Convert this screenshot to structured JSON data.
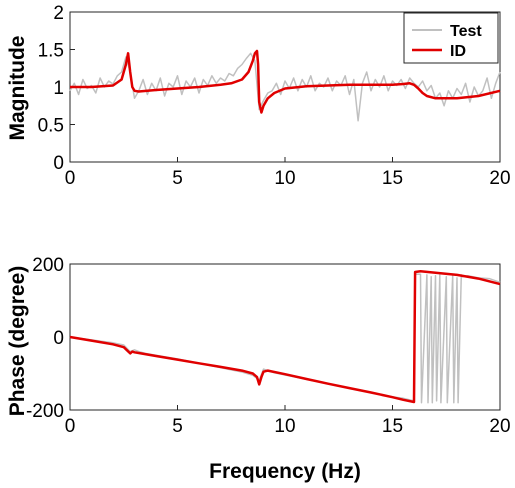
{
  "chart_data": [
    {
      "type": "line",
      "ylabel": "Magnitude",
      "xlabel": "",
      "xlim": [
        0,
        20
      ],
      "ylim": [
        0,
        2
      ],
      "xticks": [
        "0",
        "5",
        "10",
        "15",
        "20"
      ],
      "yticks": [
        "0",
        "0.5",
        "1",
        "1.5",
        "2"
      ],
      "legend": {
        "position": "top-right",
        "entries": [
          "Test",
          "ID"
        ]
      },
      "series": [
        {
          "name": "Test",
          "color": "#c0c0c0",
          "x": [
            0,
            0.2,
            0.4,
            0.6,
            0.8,
            1,
            1.2,
            1.4,
            1.6,
            1.8,
            2,
            2.2,
            2.4,
            2.6,
            2.8,
            3,
            3.2,
            3.4,
            3.6,
            3.8,
            4,
            4.2,
            4.4,
            4.6,
            4.8,
            5,
            5.2,
            5.4,
            5.6,
            5.8,
            6,
            6.2,
            6.4,
            6.6,
            6.8,
            7,
            7.2,
            7.4,
            7.6,
            7.8,
            8,
            8.2,
            8.4,
            8.6,
            8.8,
            9,
            9.2,
            9.4,
            9.6,
            9.8,
            10,
            10.2,
            10.4,
            10.6,
            10.8,
            11,
            11.2,
            11.4,
            11.6,
            11.8,
            12,
            12.2,
            12.4,
            12.6,
            12.8,
            13,
            13.2,
            13.4,
            13.6,
            13.8,
            14,
            14.2,
            14.4,
            14.6,
            14.8,
            15,
            15.2,
            15.4,
            15.6,
            15.8,
            16,
            16.2,
            16.4,
            16.6,
            16.8,
            17,
            17.2,
            17.4,
            17.6,
            17.8,
            18,
            18.2,
            18.4,
            18.6,
            18.8,
            19,
            19.2,
            19.4,
            19.6,
            19.8,
            20
          ],
          "y": [
            0.95,
            1.05,
            0.9,
            1.1,
            0.98,
            1.02,
            0.92,
            1.12,
            1.0,
            1.08,
            1.04,
            1.15,
            1.2,
            1.4,
            1.2,
            0.85,
            0.95,
            1.1,
            0.9,
            1.05,
            0.95,
            1.12,
            0.88,
            1.05,
            1.0,
            1.15,
            0.9,
            1.08,
            1.0,
            1.12,
            0.92,
            1.1,
            1.02,
            1.15,
            1.05,
            1.12,
            1.08,
            1.18,
            1.15,
            1.25,
            1.3,
            1.38,
            1.45,
            1.35,
            0.7,
            0.82,
            0.92,
            0.95,
            1.05,
            0.9,
            1.08,
            0.98,
            1.12,
            0.95,
            1.1,
            1.0,
            1.15,
            0.95,
            1.05,
            1.0,
            1.12,
            0.95,
            1.08,
            1.02,
            1.15,
            0.9,
            1.1,
            0.55,
            1.05,
            1.2,
            0.95,
            1.1,
            1.0,
            1.15,
            0.95,
            1.08,
            1.02,
            1.1,
            0.98,
            1.12,
            1.05,
            1.0,
            1.08,
            0.95,
            1.02,
            0.85,
            0.92,
            0.75,
            0.95,
            0.85,
            0.98,
            0.9,
            1.05,
            0.8,
            1.0,
            0.88,
            0.95,
            1.12,
            0.85,
            1.05,
            1.2
          ]
        },
        {
          "name": "ID",
          "color": "#e00000",
          "x": [
            0,
            1,
            2,
            2.4,
            2.6,
            2.7,
            2.8,
            2.9,
            3,
            3.2,
            4,
            5,
            6,
            7,
            7.5,
            8,
            8.3,
            8.5,
            8.6,
            8.7,
            8.75,
            8.8,
            8.9,
            9,
            9.2,
            9.5,
            10,
            11,
            12,
            13,
            14,
            15,
            15.5,
            15.8,
            16,
            16.2,
            16.4,
            16.6,
            17,
            18,
            19,
            20
          ],
          "y": [
            1.0,
            1.0,
            1.02,
            1.1,
            1.3,
            1.45,
            1.2,
            1.0,
            0.95,
            0.94,
            0.96,
            0.98,
            1.0,
            1.03,
            1.05,
            1.1,
            1.2,
            1.35,
            1.45,
            1.48,
            1.3,
            0.8,
            0.66,
            0.75,
            0.85,
            0.92,
            0.98,
            1.01,
            1.02,
            1.03,
            1.03,
            1.03,
            1.04,
            1.05,
            1.03,
            0.98,
            0.92,
            0.88,
            0.85,
            0.85,
            0.88,
            0.95
          ]
        }
      ]
    },
    {
      "type": "line",
      "ylabel": "Phase (degree)",
      "xlabel": "Frequency (Hz)",
      "xlim": [
        0,
        20
      ],
      "ylim": [
        -200,
        200
      ],
      "xticks": [
        "0",
        "5",
        "10",
        "15",
        "20"
      ],
      "yticks": [
        "-200",
        "0",
        "200"
      ],
      "series": [
        {
          "name": "Test",
          "color": "#c0c0c0",
          "x": [
            0,
            0.5,
            1,
            1.5,
            2,
            2.5,
            2.8,
            3,
            3.2,
            3.5,
            4,
            4.5,
            5,
            5.5,
            6,
            6.5,
            7,
            7.5,
            8,
            8.5,
            8.8,
            9,
            9.2,
            9.5,
            10,
            10.5,
            11,
            11.5,
            12,
            12.5,
            13,
            13.5,
            14,
            14.5,
            15,
            15.5,
            16,
            16.05,
            16.3,
            16.35,
            16.6,
            16.65,
            16.8,
            16.85,
            17,
            17.05,
            17.2,
            17.25,
            17.5,
            17.55,
            17.8,
            17.85,
            18,
            18.05,
            18.2,
            18.25,
            18.5,
            19,
            19.5,
            20
          ],
          "y": [
            0,
            -4,
            -8,
            -12,
            -16,
            -22,
            -40,
            -35,
            -40,
            -45,
            -50,
            -55,
            -60,
            -66,
            -72,
            -78,
            -84,
            -90,
            -96,
            -105,
            -118,
            -88,
            -92,
            -98,
            -104,
            -110,
            -116,
            -122,
            -128,
            -134,
            -140,
            -146,
            -152,
            -158,
            -164,
            -168,
            -175,
            172,
            172,
            -180,
            170,
            -180,
            165,
            -180,
            168,
            -175,
            170,
            -180,
            165,
            -180,
            168,
            -180,
            162,
            -180,
            170,
            165,
            168,
            162,
            160,
            150
          ]
        },
        {
          "name": "ID",
          "color": "#e00000",
          "x": [
            0,
            1,
            2,
            2.5,
            2.8,
            2.9,
            3,
            3.3,
            4,
            5,
            6,
            7,
            8,
            8.5,
            8.7,
            8.8,
            8.9,
            9,
            9.2,
            10,
            11,
            12,
            13,
            14,
            15,
            15.5,
            16,
            16.05,
            16.3,
            17,
            18,
            19,
            20
          ],
          "y": [
            0,
            -10,
            -20,
            -28,
            -45,
            -40,
            -42,
            -45,
            -52,
            -62,
            -72,
            -82,
            -92,
            -100,
            -110,
            -130,
            -110,
            -95,
            -92,
            -102,
            -115,
            -128,
            -140,
            -152,
            -165,
            -172,
            -178,
            178,
            180,
            176,
            170,
            160,
            145
          ]
        }
      ]
    }
  ]
}
